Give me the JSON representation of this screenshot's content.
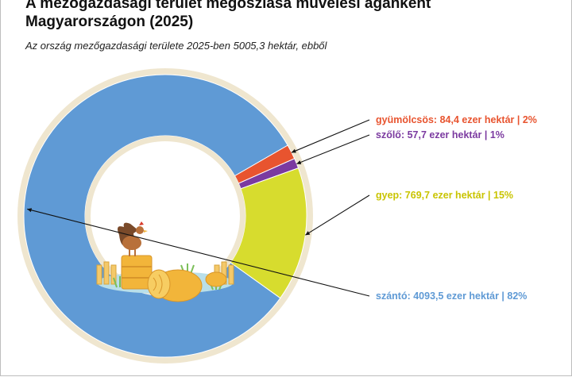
{
  "title_line1": "A mezőgazdasági terület megoszlása művelési áganként",
  "title_line2": "Magyarországon (2025)",
  "subtitle": "Az ország mezőgazdasági területe 2025-ben 5005,3 hektár, ebből",
  "chart_data": {
    "type": "pie",
    "style": "donut",
    "unit": "ezer hektár",
    "categories": [
      "gyümölcsös",
      "szőlő",
      "gyep",
      "szántó"
    ],
    "values": [
      84.4,
      57.7,
      769.7,
      4093.5
    ],
    "percent": [
      2,
      1,
      15,
      82
    ],
    "colors": [
      "#e8542f",
      "#7b3aa0",
      "#d7dc2e",
      "#5f9ad5"
    ],
    "labels": [
      "gyümölcsös: 84,4 ezer hektár | 2%",
      "szőlő: 57,7 ezer hektár | 1%",
      "gyep: 769,7 ezer hektár | 15%",
      "szántó: 4093,5 ezer hektár | 82%"
    ],
    "label_colors": [
      "#e8542f",
      "#7b3aa0",
      "#c9c400",
      "#5f9ad5"
    ]
  }
}
